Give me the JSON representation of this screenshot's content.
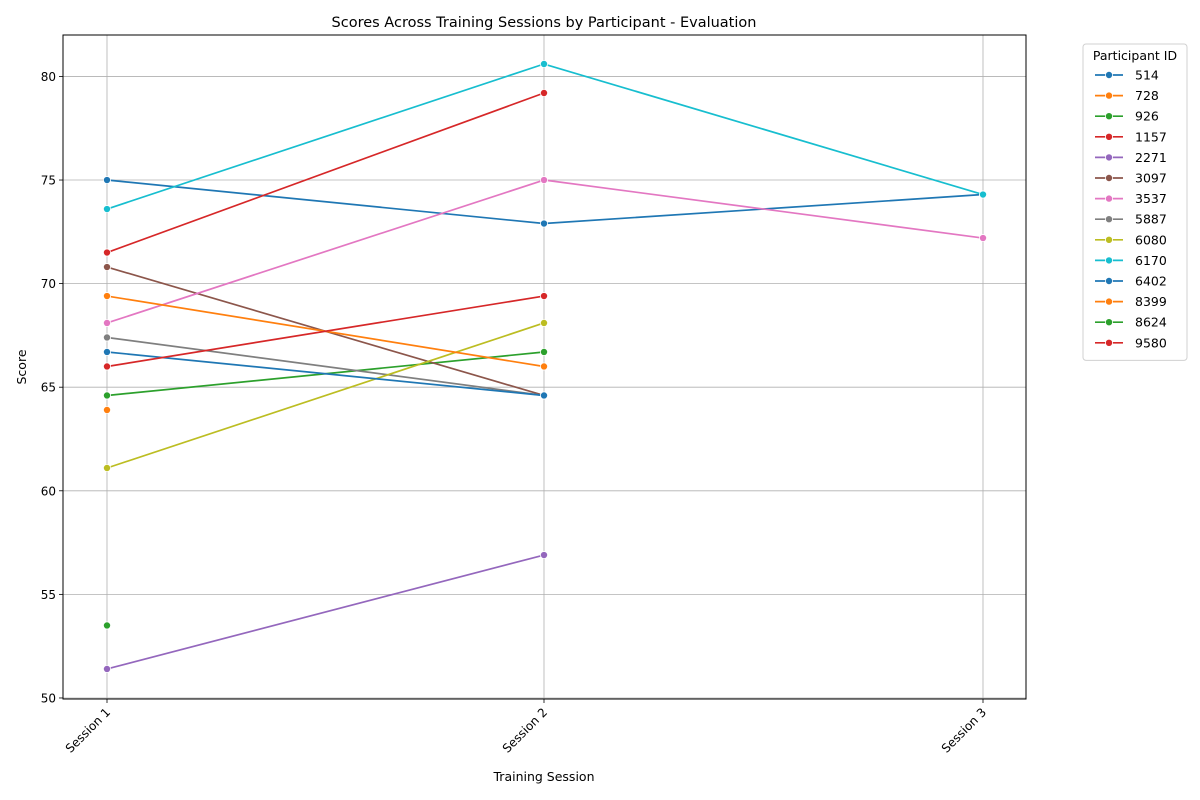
{
  "chart_data": {
    "type": "line",
    "title": "Scores Across Training Sessions by Participant - Evaluation",
    "xlabel": "Training Session",
    "ylabel": "Score",
    "categories": [
      "Session 1",
      "Session 2",
      "Session 3"
    ],
    "ylim": [
      50,
      82
    ],
    "yticks": [
      50,
      55,
      60,
      65,
      70,
      75,
      80
    ],
    "grid": true,
    "legend": {
      "title": "Participant ID",
      "placement": "outside-right-top"
    },
    "series": [
      {
        "name": "514",
        "color": "#1f77b4",
        "values": [
          75.0,
          72.9,
          74.3
        ]
      },
      {
        "name": "728",
        "color": "#ff7f0e",
        "values": [
          63.9,
          null,
          null
        ]
      },
      {
        "name": "926",
        "color": "#2ca02c",
        "values": [
          64.6,
          66.7,
          null
        ]
      },
      {
        "name": "1157",
        "color": "#d62728",
        "values": [
          71.5,
          79.2,
          null
        ]
      },
      {
        "name": "2271",
        "color": "#9467bd",
        "values": [
          51.4,
          56.9,
          null
        ]
      },
      {
        "name": "3097",
        "color": "#8c564b",
        "values": [
          70.8,
          64.6,
          null
        ]
      },
      {
        "name": "3537",
        "color": "#e377c2",
        "values": [
          68.1,
          75.0,
          72.2
        ]
      },
      {
        "name": "5887",
        "color": "#7f7f7f",
        "values": [
          67.4,
          64.6,
          null
        ]
      },
      {
        "name": "6080",
        "color": "#bcbd22",
        "values": [
          61.1,
          68.1,
          null
        ]
      },
      {
        "name": "6170",
        "color": "#17becf",
        "values": [
          73.6,
          80.6,
          74.3
        ]
      },
      {
        "name": "6402",
        "color": "#1f77b4",
        "values": [
          66.7,
          64.6,
          null
        ]
      },
      {
        "name": "8399",
        "color": "#ff7f0e",
        "values": [
          69.4,
          66.0,
          null
        ]
      },
      {
        "name": "8624",
        "color": "#2ca02c",
        "values": [
          53.5,
          null,
          null
        ]
      },
      {
        "name": "9580",
        "color": "#d62728",
        "values": [
          66.0,
          69.4,
          null
        ]
      }
    ]
  }
}
